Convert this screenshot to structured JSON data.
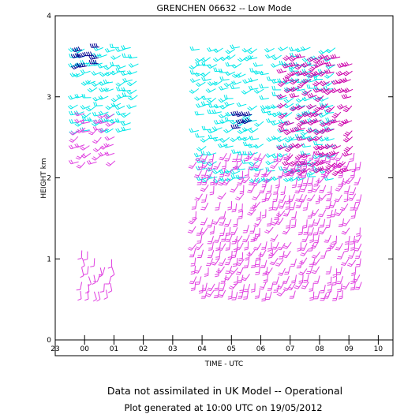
{
  "chart_data": {
    "type": "wind-barb-profile",
    "title": "GRENCHEN 06632 -- Low Mode",
    "xlabel": "TIME - UTC",
    "ylabel": "HEIGHT km",
    "x_ticks": [
      "23",
      "00",
      "01",
      "02",
      "03",
      "04",
      "05",
      "06",
      "07",
      "08",
      "09",
      "10"
    ],
    "y_ticks": [
      "0",
      "1",
      "2",
      "3",
      "4"
    ],
    "xlim": [
      -1,
      10.5
    ],
    "ylim": [
      0,
      4
    ],
    "colors": {
      "light_wind": "#00e8e8",
      "moderate_wind": "#e040e0",
      "strong_wind": "#cc00aa",
      "very_strong_wind": "#000090"
    },
    "series": [
      {
        "color_key": "light_wind",
        "time_range": [
          -0.2,
          1.9
        ],
        "height_range": [
          2.6,
          3.6
        ],
        "direction_deg": 250,
        "speed_kt": 15
      },
      {
        "color_key": "moderate_wind",
        "time_range": [
          -0.2,
          1.0
        ],
        "height_range": [
          2.2,
          2.8
        ],
        "direction_deg": 240,
        "speed_kt": 20
      },
      {
        "color_key": "light_wind",
        "time_range": [
          3.9,
          8.6
        ],
        "height_range": [
          2.0,
          3.6
        ],
        "direction_deg": 250,
        "speed_kt": 15
      },
      {
        "color_key": "strong_wind",
        "time_range": [
          6.9,
          9.2
        ],
        "height_range": [
          2.1,
          3.5
        ],
        "direction_deg": 240,
        "speed_kt": 25
      },
      {
        "color_key": "moderate_wind",
        "time_range": [
          3.8,
          9.5
        ],
        "height_range": [
          0.6,
          2.3
        ],
        "direction_deg": 200,
        "speed_kt": 15
      },
      {
        "color_key": "moderate_wind",
        "time_range": [
          -0.1,
          0.9
        ],
        "height_range": [
          0.6,
          1.1
        ],
        "direction_deg": 180,
        "speed_kt": 10
      },
      {
        "color_key": "very_strong_wind",
        "time_range": [
          -0.1,
          0.5
        ],
        "height_range": [
          3.4,
          3.6
        ],
        "direction_deg": 250,
        "speed_kt": 35
      },
      {
        "color_key": "very_strong_wind",
        "time_range": [
          5.3,
          5.8
        ],
        "height_range": [
          2.6,
          2.8
        ],
        "direction_deg": 250,
        "speed_kt": 35
      }
    ]
  },
  "footer": {
    "line1": "Data not assimilated in UK Model -- Operational",
    "line2": "Plot generated at 10:00 UTC on 19/05/2012"
  }
}
